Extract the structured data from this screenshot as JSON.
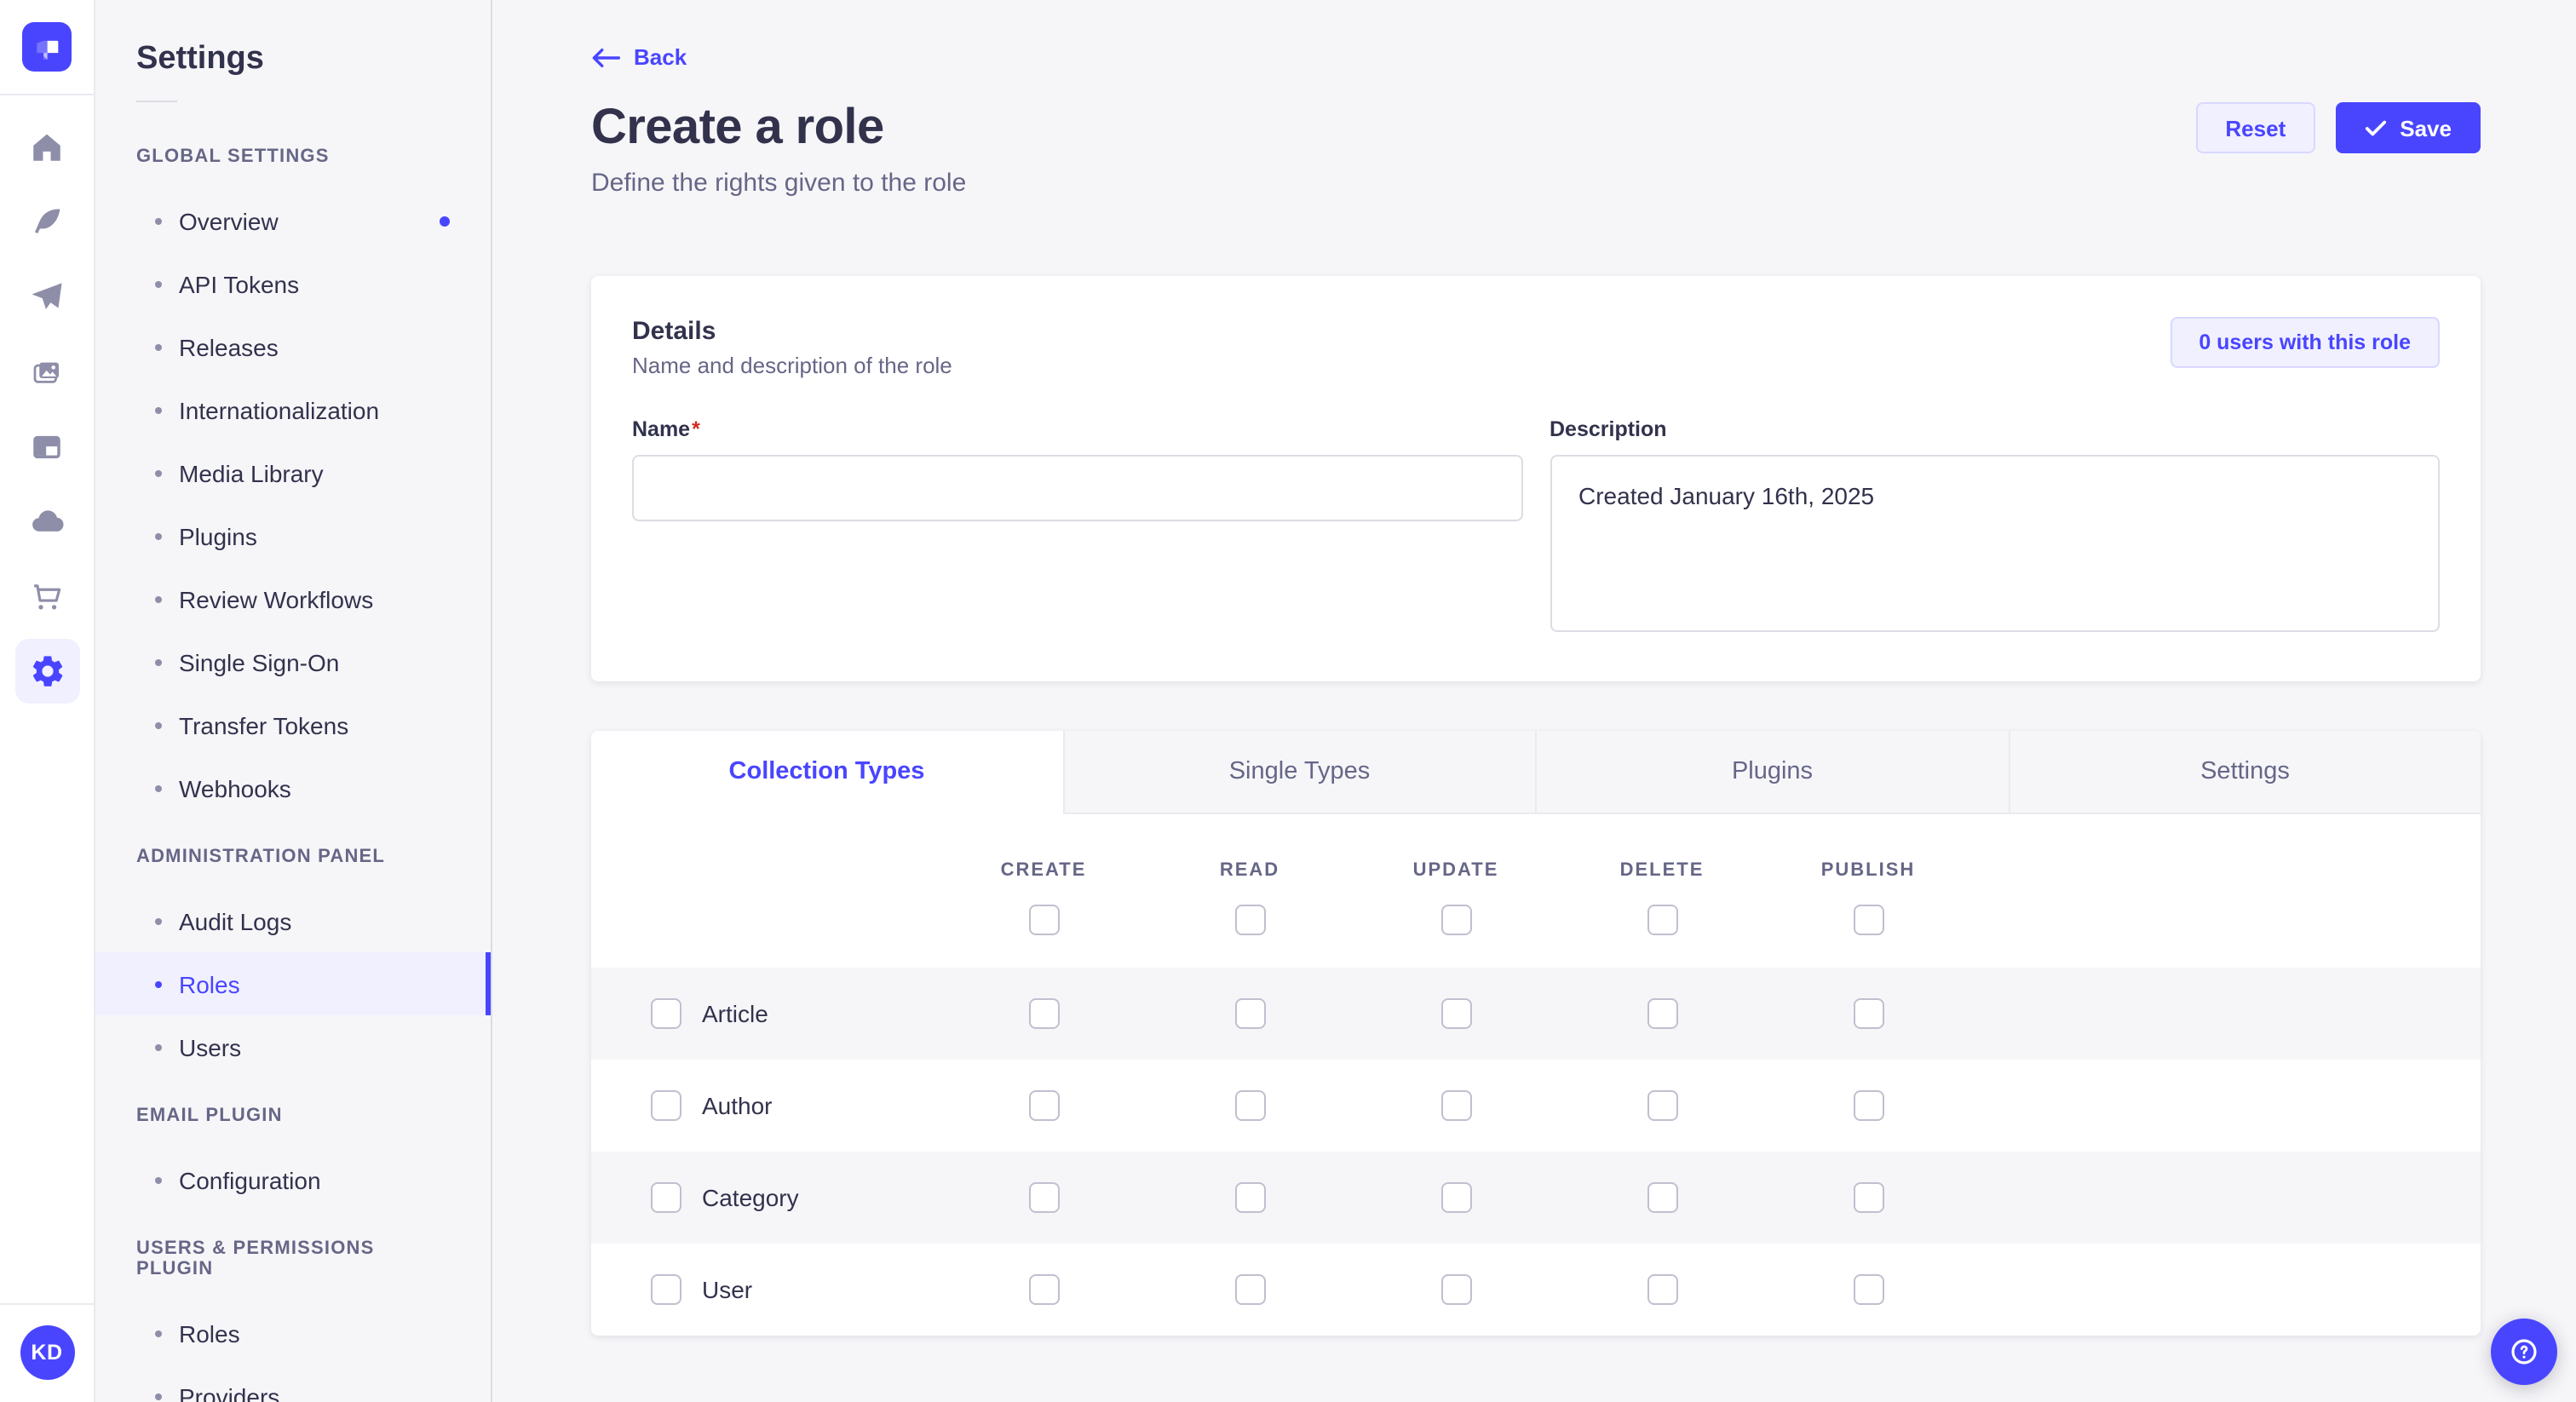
{
  "colors": {
    "primary": "#4945ff",
    "primary_light": "#f0f0ff",
    "primary_border": "#d9d8ff",
    "text_dark": "#32324d",
    "text_gray": "#666687",
    "border": "#dcdce4",
    "background": "#f6f6f9",
    "required_red": "#d02b20"
  },
  "rail": {
    "logo_name": "strapi-logo",
    "icons": [
      {
        "name": "home-icon",
        "active": false
      },
      {
        "name": "feather-icon",
        "active": false
      },
      {
        "name": "paper-plane-icon",
        "active": false
      },
      {
        "name": "pictures-icon",
        "active": false
      },
      {
        "name": "layout-icon",
        "active": false
      },
      {
        "name": "cloud-icon",
        "active": false
      },
      {
        "name": "cart-icon",
        "active": false
      },
      {
        "name": "gear-icon",
        "active": true
      }
    ],
    "avatar_initials": "KD"
  },
  "sidebar": {
    "title": "Settings",
    "sections": [
      {
        "label": "GLOBAL SETTINGS",
        "items": [
          {
            "label": "Overview",
            "notification": true
          },
          {
            "label": "API Tokens"
          },
          {
            "label": "Releases"
          },
          {
            "label": "Internationalization"
          },
          {
            "label": "Media Library"
          },
          {
            "label": "Plugins"
          },
          {
            "label": "Review Workflows"
          },
          {
            "label": "Single Sign-On"
          },
          {
            "label": "Transfer Tokens"
          },
          {
            "label": "Webhooks"
          }
        ]
      },
      {
        "label": "ADMINISTRATION PANEL",
        "items": [
          {
            "label": "Audit Logs"
          },
          {
            "label": "Roles",
            "active": true
          },
          {
            "label": "Users"
          }
        ]
      },
      {
        "label": "EMAIL PLUGIN",
        "items": [
          {
            "label": "Configuration"
          }
        ]
      },
      {
        "label": "USERS & PERMISSIONS PLUGIN",
        "items": [
          {
            "label": "Roles"
          },
          {
            "label": "Providers"
          }
        ]
      }
    ]
  },
  "header": {
    "back_label": "Back",
    "title": "Create a role",
    "subtitle": "Define the rights given to the role",
    "reset_label": "Reset",
    "save_label": "Save"
  },
  "details": {
    "title": "Details",
    "subtitle": "Name and description of the role",
    "users_badge": "0 users with this role",
    "name_label": "Name",
    "required_mark": "*",
    "name_value": "",
    "name_placeholder": "",
    "description_label": "Description",
    "description_value": "Created January 16th, 2025"
  },
  "permissions": {
    "tabs": [
      {
        "label": "Collection Types",
        "active": true
      },
      {
        "label": "Single Types",
        "active": false
      },
      {
        "label": "Plugins",
        "active": false
      },
      {
        "label": "Settings",
        "active": false
      }
    ],
    "columns": [
      "CREATE",
      "READ",
      "UPDATE",
      "DELETE",
      "PUBLISH"
    ],
    "select_all_checked": [
      false,
      false,
      false,
      false,
      false
    ],
    "rows": [
      {
        "label": "Article",
        "row_checked": false,
        "cells": [
          false,
          false,
          false,
          false,
          false
        ]
      },
      {
        "label": "Author",
        "row_checked": false,
        "cells": [
          false,
          false,
          false,
          false,
          false
        ]
      },
      {
        "label": "Category",
        "row_checked": false,
        "cells": [
          false,
          false,
          false,
          false,
          false
        ]
      },
      {
        "label": "User",
        "row_checked": false,
        "cells": [
          false,
          false,
          false,
          false,
          false
        ]
      }
    ]
  },
  "fab": {
    "icon": "question-mark-icon"
  }
}
